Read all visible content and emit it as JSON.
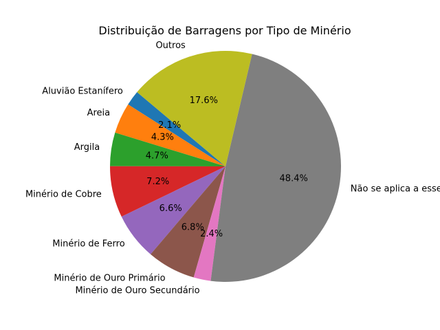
{
  "chart_data": {
    "type": "pie",
    "title": "Distribuição de Barragens por Tipo de Minério",
    "categories": [
      "Aluvião Estanífero",
      "Areia",
      "Argila",
      "Minério de Cobre",
      "Minério de Ferro",
      "Minério de Ouro Primário",
      "Minério de Ouro Secundário",
      "Não se aplica a esse",
      "Outros"
    ],
    "values": [
      2.1,
      4.3,
      4.7,
      7.2,
      6.6,
      6.8,
      2.4,
      48.4,
      17.6
    ],
    "value_labels": [
      "2.1%",
      "4.3%",
      "4.7%",
      "7.2%",
      "6.6%",
      "6.8%",
      "2.4%",
      "48.4%",
      "17.6%"
    ],
    "colors": [
      "#1f77b4",
      "#ff7f0e",
      "#2ca02c",
      "#d62728",
      "#9467bd",
      "#8c564b",
      "#e377c2",
      "#7f7f7f",
      "#bcbd22"
    ],
    "start_angle_deg": 140,
    "direction": "counterclockwise",
    "legend": "none"
  }
}
